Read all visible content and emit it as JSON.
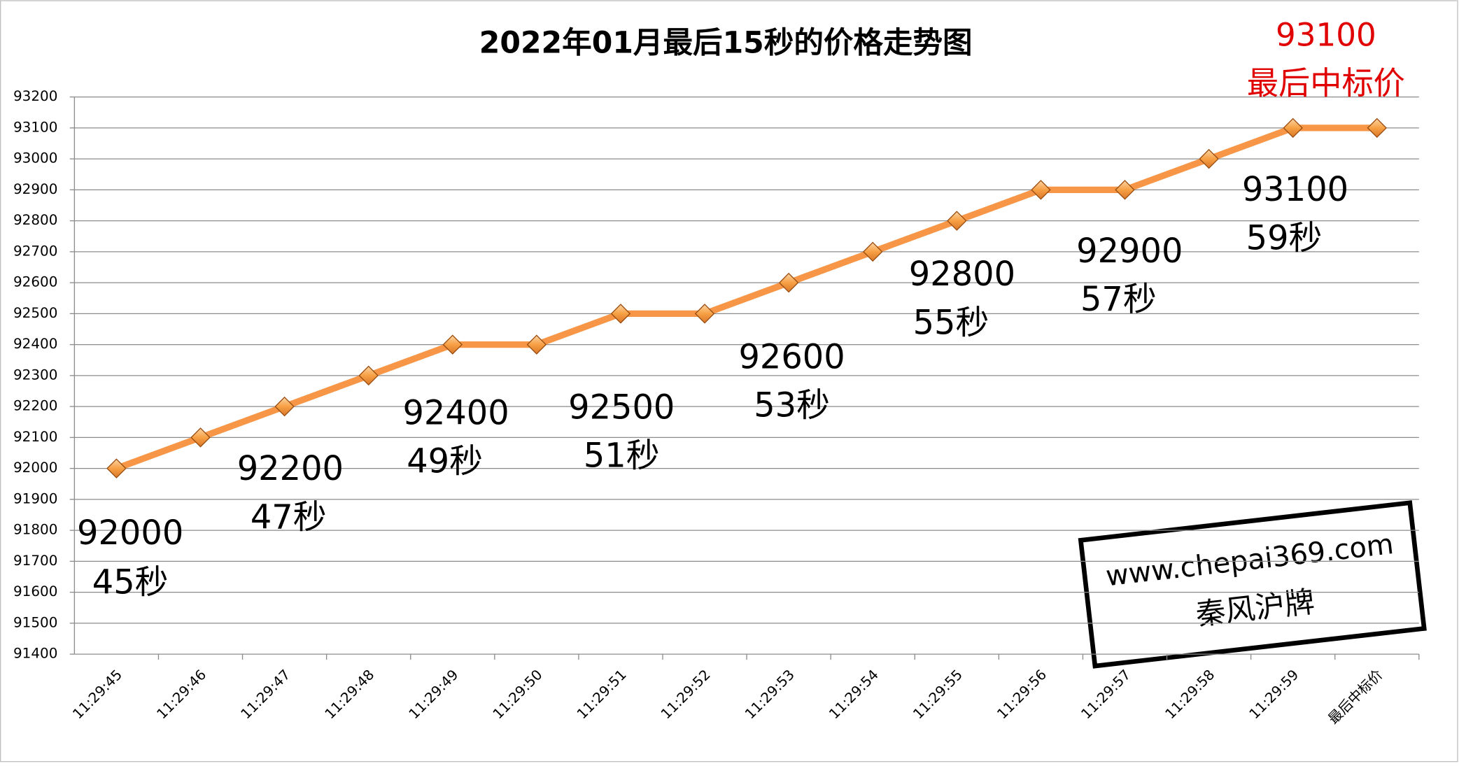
{
  "chart_data": {
    "type": "line",
    "title": "2022年01月最后15秒的价格走势图",
    "categories": [
      "11:29:45",
      "11:29:46",
      "11:29:47",
      "11:29:48",
      "11:29:49",
      "11:29:50",
      "11:29:51",
      "11:29:52",
      "11:29:53",
      "11:29:54",
      "11:29:55",
      "11:29:56",
      "11:29:57",
      "11:29:58",
      "11:29:59",
      "最后中标价"
    ],
    "values": [
      92000,
      92100,
      92200,
      92300,
      92400,
      92400,
      92500,
      92500,
      92600,
      92700,
      92800,
      92900,
      92900,
      93000,
      93100,
      93100
    ],
    "color": "#f79646",
    "ylim": [
      91400,
      93200
    ],
    "yticks": [
      91400,
      91500,
      91600,
      91700,
      91800,
      91900,
      92000,
      92100,
      92200,
      92300,
      92400,
      92500,
      92600,
      92700,
      92800,
      92900,
      93000,
      93100,
      93200
    ],
    "grid": true,
    "annotations": [
      {
        "value": "92000",
        "label": "45秒"
      },
      {
        "value": "92200",
        "label": "47秒"
      },
      {
        "value": "92400",
        "label": "49秒"
      },
      {
        "value": "92500",
        "label": "51秒"
      },
      {
        "value": "92600",
        "label": "53秒"
      },
      {
        "value": "92800",
        "label": "55秒"
      },
      {
        "value": "92900",
        "label": "57秒"
      },
      {
        "value": "93100",
        "label": "59秒"
      }
    ],
    "final_price": {
      "value": "93100",
      "label": "最后中标价"
    },
    "watermark": {
      "url": "www.chepai369.com",
      "name": "秦风沪牌"
    }
  }
}
